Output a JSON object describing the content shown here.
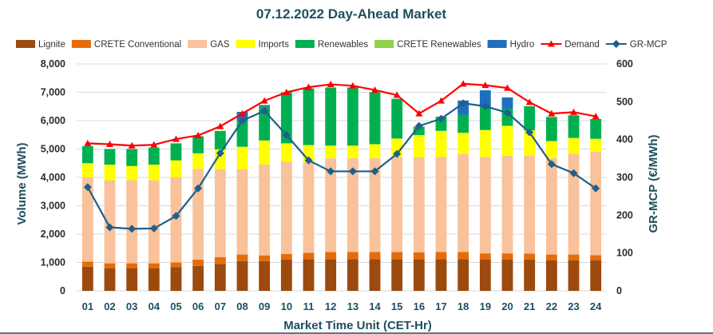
{
  "chart_data": {
    "type": "bar",
    "stacked": true,
    "title": "07.12.2022  Day-Ahead Market",
    "xlabel": "Market Time Unit (CET-Hr)",
    "ylabel": "Volume (MWh)",
    "y2label": "GR-MCP (€/MWh)",
    "ylim": [
      0,
      8000
    ],
    "y2lim": [
      0,
      600
    ],
    "yticks": [
      "0",
      "1,000",
      "2,000",
      "3,000",
      "4,000",
      "5,000",
      "6,000",
      "7,000",
      "8,000"
    ],
    "y2ticks": [
      "0",
      "100",
      "200",
      "300",
      "400",
      "500",
      "600"
    ],
    "grid": true,
    "legend_position": "top",
    "categories": [
      "01",
      "02",
      "03",
      "04",
      "05",
      "06",
      "07",
      "08",
      "09",
      "10",
      "11",
      "12",
      "13",
      "14",
      "15",
      "16",
      "17",
      "18",
      "19",
      "20",
      "21",
      "22",
      "23",
      "24"
    ],
    "series": [
      {
        "name": "Lignite",
        "color": "#9c4a0e",
        "values": [
          850,
          800,
          800,
          800,
          830,
          880,
          950,
          1050,
          1050,
          1100,
          1120,
          1120,
          1120,
          1120,
          1120,
          1120,
          1120,
          1120,
          1100,
          1100,
          1100,
          1080,
          1080,
          1080
        ]
      },
      {
        "name": "CRETE Conventional",
        "color": "#e46c0a",
        "values": [
          180,
          170,
          170,
          170,
          170,
          220,
          240,
          230,
          200,
          200,
          220,
          250,
          250,
          250,
          250,
          240,
          250,
          250,
          220,
          220,
          210,
          200,
          200,
          180
        ]
      },
      {
        "name": "GAS",
        "color": "#f9c29a",
        "values": [
          2970,
          2930,
          2930,
          2930,
          3000,
          3200,
          3100,
          3000,
          3200,
          3250,
          3200,
          3300,
          3300,
          3300,
          3350,
          3350,
          3350,
          3450,
          3400,
          3450,
          3450,
          3400,
          3550,
          3650
        ]
      },
      {
        "name": "Imports",
        "color": "#ffff00",
        "values": [
          500,
          550,
          500,
          550,
          600,
          550,
          700,
          800,
          850,
          650,
          600,
          450,
          450,
          500,
          650,
          780,
          920,
          750,
          950,
          1050,
          900,
          600,
          560,
          450
        ]
      },
      {
        "name": "Renewables",
        "color": "#00b050",
        "values": [
          600,
          550,
          600,
          600,
          600,
          600,
          650,
          930,
          1200,
          1800,
          2000,
          2050,
          2050,
          1830,
          1400,
          300,
          500,
          640,
          800,
          600,
          850,
          850,
          800,
          700
        ]
      },
      {
        "name": "CRETE Renewables",
        "color": "#92d050",
        "values": [
          0,
          0,
          0,
          0,
          0,
          0,
          0,
          0,
          0,
          0,
          0,
          0,
          0,
          0,
          0,
          0,
          0,
          0,
          0,
          0,
          0,
          0,
          0,
          0
        ]
      },
      {
        "name": "Hydro",
        "color": "#1f6fbf",
        "values": [
          0,
          0,
          0,
          0,
          0,
          0,
          0,
          300,
          50,
          0,
          0,
          0,
          0,
          0,
          0,
          0,
          0,
          500,
          600,
          400,
          0,
          0,
          0,
          0
        ]
      },
      {
        "name": "Demand",
        "type": "line",
        "color": "#ff0000",
        "values": [
          5200,
          5170,
          5120,
          5150,
          5350,
          5480,
          5800,
          6250,
          6700,
          7000,
          7180,
          7280,
          7230,
          7080,
          6900,
          6250,
          6700,
          7300,
          7250,
          7150,
          6650,
          6250,
          6300,
          6150
        ]
      },
      {
        "name": "GR-MCP",
        "type": "line",
        "axis": "right",
        "color": "#1f5f8b",
        "values": [
          274,
          168,
          164,
          165,
          198,
          271,
          364,
          450,
          476,
          412,
          345,
          316,
          316,
          316,
          362,
          436,
          455,
          496,
          488,
          471,
          419,
          335,
          311,
          271
        ]
      }
    ]
  }
}
